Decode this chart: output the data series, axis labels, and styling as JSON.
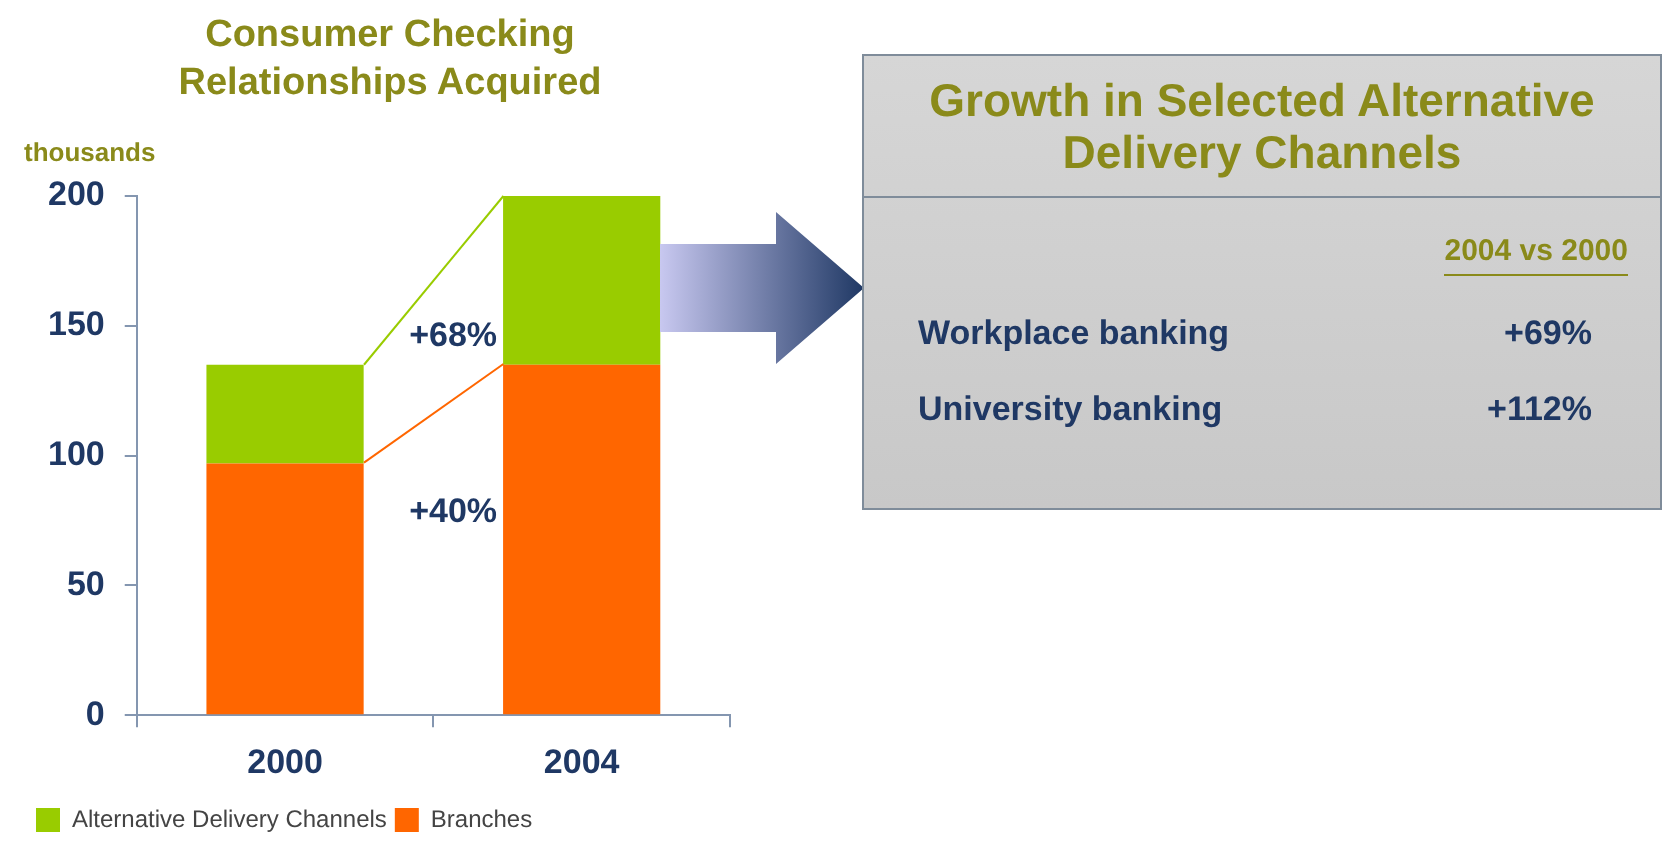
{
  "chart_data": [
    {
      "type": "bar",
      "title": "Consumer Checking Relationships Acquired",
      "ylabel": "thousands",
      "categories": [
        "2000",
        "2004"
      ],
      "stacked": true,
      "legend": "bottom left",
      "grid": false,
      "ylim": [
        0,
        200
      ],
      "yticks": [
        0,
        50,
        100,
        150,
        200
      ],
      "series": [
        {
          "name": "Branches",
          "color": "#ff6600",
          "values": [
            97,
            135
          ]
        },
        {
          "name": "Alternative Delivery Channels",
          "color": "#99cc00",
          "values": [
            38,
            65
          ]
        }
      ],
      "annotations": [
        {
          "text": "+68%",
          "x": "2004",
          "y": 135
        },
        "+40%"
      ]
    },
    {
      "type": "other",
      "title": "Growth in Selected Alternative Delivery Channels",
      "annotations": [
        "2004 vs 2000",
        "Workplace banking",
        "+69%",
        "University banking",
        "+112%"
      ]
    }
  ]
}
